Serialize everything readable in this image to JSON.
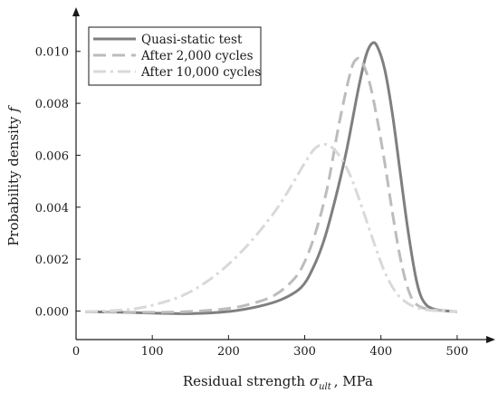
{
  "chart_data": {
    "type": "line",
    "xlabel": "Residual strength",
    "xlabel_symbol": "σ",
    "xlabel_subscript": "ult",
    "xlabel_unit": ", MPa",
    "ylabel": "Probability density",
    "ylabel_symbol": "f",
    "xlim": [
      0,
      550
    ],
    "ylim": [
      -0.0011,
      0.0117
    ],
    "x_ticks": [
      {
        "value": 0,
        "label": "0"
      },
      {
        "value": 100,
        "label": "100"
      },
      {
        "value": 200,
        "label": "200"
      },
      {
        "value": 300,
        "label": "300"
      },
      {
        "value": 400,
        "label": "400"
      },
      {
        "value": 500,
        "label": "500"
      }
    ],
    "y_ticks": [
      {
        "value": 0,
        "label": "0.000"
      },
      {
        "value": 0.002,
        "label": "0.002"
      },
      {
        "value": 0.004,
        "label": "0.004"
      },
      {
        "value": 0.006,
        "label": "0.006"
      },
      {
        "value": 0.008,
        "label": "0.008"
      },
      {
        "value": 0.01,
        "label": "0.010"
      }
    ],
    "legend_position": "top-left",
    "grid": false,
    "series": [
      {
        "name": "Quasi-static test",
        "color": "#7f7f7f",
        "style": "solid",
        "x": [
          12,
          50,
          100,
          150,
          200,
          240,
          270,
          295,
          310,
          325,
          340,
          355,
          370,
          380,
          388,
          395,
          405,
          415,
          425,
          435,
          445,
          452,
          460,
          470,
          480,
          500
        ],
        "y": [
          -3e-05,
          -4e-05,
          -8e-05,
          -0.0001,
          -2e-05,
          0.00018,
          0.00045,
          0.0009,
          0.0016,
          0.0027,
          0.0043,
          0.0062,
          0.0085,
          0.0098,
          0.0103,
          0.0102,
          0.0093,
          0.0076,
          0.0054,
          0.0032,
          0.0014,
          0.0006,
          0.00022,
          7e-05,
          2e-05,
          -3e-05
        ]
      },
      {
        "name": "After 2,000 cycles",
        "color": "#bcbcbc",
        "style": "dashed",
        "x": [
          12,
          50,
          100,
          150,
          200,
          230,
          260,
          285,
          300,
          315,
          330,
          345,
          360,
          368,
          375,
          385,
          395,
          405,
          415,
          425,
          435,
          445,
          460,
          480,
          500
        ],
        "y": [
          -3e-05,
          -4e-05,
          -5e-05,
          -2e-05,
          0.0001,
          0.00028,
          0.0006,
          0.0012,
          0.0019,
          0.0031,
          0.0048,
          0.0072,
          0.0092,
          0.0097,
          0.0096,
          0.0088,
          0.0074,
          0.0057,
          0.0038,
          0.0021,
          0.0009,
          0.0003,
          8e-05,
          2e-05,
          -2e-05
        ]
      },
      {
        "name": "After 10,000 cycles",
        "color": "#d9d9d9",
        "style": "dashdot",
        "x": [
          12,
          50,
          80,
          110,
          140,
          170,
          200,
          230,
          260,
          280,
          300,
          315,
          330,
          345,
          360,
          375,
          390,
          405,
          420,
          435,
          450,
          465,
          480,
          500
        ],
        "y": [
          -3e-05,
          2e-05,
          0.0001,
          0.0003,
          0.0006,
          0.0011,
          0.0018,
          0.0027,
          0.0038,
          0.0047,
          0.0057,
          0.0063,
          0.0064,
          0.006,
          0.0052,
          0.004,
          0.0027,
          0.0015,
          0.0007,
          0.0003,
          0.0001,
          3e-05,
          0.0,
          -2e-05
        ]
      }
    ]
  }
}
